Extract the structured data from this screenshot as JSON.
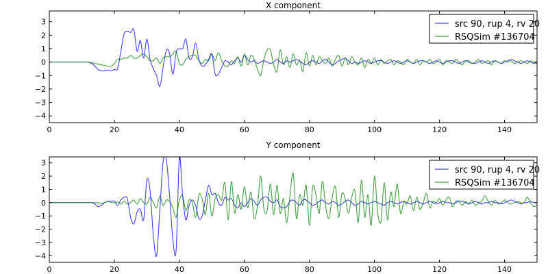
{
  "chart_data": [
    {
      "type": "line",
      "title": "X component",
      "xlim": [
        0,
        150
      ],
      "ylim": [
        -4.5,
        3.8
      ],
      "xticks": [
        0,
        20,
        40,
        60,
        80,
        100,
        120,
        140
      ],
      "yticks": [
        -4,
        -3,
        -2,
        -1,
        0,
        1,
        2,
        3
      ],
      "grid": false,
      "legend_position": "top-right",
      "series": [
        {
          "name": "src 90, rup 4, rv 20",
          "color": "#0000ff",
          "values": [
            0,
            0,
            0,
            0,
            0,
            0,
            0,
            0,
            0,
            0,
            0,
            0,
            0,
            -0.1,
            -0.3,
            -0.55,
            -0.65,
            -0.65,
            -0.6,
            -0.65,
            -0.55,
            -0.5,
            0.8,
            2.1,
            2.3,
            2.2,
            2.4,
            0.8,
            1.6,
            0.3,
            1.7,
            0.2,
            -0.5,
            -1.0,
            -1.8,
            -0.4,
            0.9,
            0.6,
            -0.9,
            0.7,
            1.0,
            1.0,
            1.7,
            0.3,
            0.4,
            1.4,
            0.2,
            -0.3,
            -0.2,
            0.2,
            0.6,
            -0.9,
            -0.9,
            -0.4,
            0.1,
            0.0,
            -0.2,
            0.1,
            0.3,
            0.0,
            0.5,
            0.2,
            0.0,
            0.1,
            -0.1,
            0.0,
            0.1,
            0.0,
            -0.1,
            0.0,
            0.2,
            0.0,
            -0.1,
            0.1,
            0.0,
            0.1,
            0.2,
            0.1,
            -0.1,
            -0.2,
            0.0,
            0.1,
            0.0,
            -0.1,
            0.1,
            0.2,
            0.0,
            -0.2,
            -0.1,
            0.1,
            0.2,
            0.3,
            0.1,
            -0.1,
            0.0,
            -0.1,
            0.0,
            0.1,
            0.0,
            -0.1,
            0.0,
            0.1,
            0.1,
            0.0,
            -0.1,
            0.0,
            0.1,
            0.0,
            -0.1,
            0.0,
            0.1,
            0.0,
            -0.1,
            0.0,
            0.1,
            0.1,
            0.0,
            -0.1,
            0.0,
            0.1,
            0.0,
            -0.1,
            0.0,
            0.1,
            0.1,
            0.0,
            -0.1,
            0.0,
            0.1,
            0.0,
            -0.1,
            -0.1,
            0.0,
            0.1,
            0.0,
            -0.1,
            0.0,
            0.1,
            0.0,
            -0.1,
            0.0,
            0.1,
            0.2,
            0.1,
            0.0,
            -0.1,
            0.0,
            0.1,
            0.0,
            -0.1,
            0.0
          ]
        },
        {
          "name": "RSQSim #136704",
          "color": "#008000",
          "values": [
            0,
            0,
            0,
            0,
            0,
            0,
            0,
            0,
            0,
            0,
            0,
            0,
            0,
            -0.05,
            -0.1,
            -0.15,
            -0.2,
            -0.25,
            -0.3,
            -0.3,
            -0.1,
            0.2,
            0.2,
            0.3,
            0.3,
            0.5,
            0.3,
            0.3,
            0.5,
            0.6,
            0.4,
            0.1,
            0.1,
            0.3,
            -0.1,
            0.3,
            0.4,
            0.4,
            0.6,
            0.8,
            -0.1,
            -0.2,
            0.2,
            0.4,
            0.5,
            0.5,
            0.1,
            -0.1,
            0.2,
            0.1,
            0.6,
            0.1,
            0.7,
            0.1,
            -0.3,
            -0.3,
            0.1,
            -0.1,
            0.4,
            -0.3,
            0.6,
            -0.2,
            0.5,
            0.2,
            -0.5,
            -1.0,
            0.2,
            0.9,
            0.9,
            -0.2,
            -0.7,
            0.9,
            -0.2,
            0.4,
            -0.4,
            0.6,
            -0.2,
            0.1,
            -0.7,
            0.7,
            -0.3,
            0.5,
            -0.2,
            0.4,
            0.1,
            -0.1,
            0.3,
            -0.3,
            0.2,
            0.5,
            -0.3,
            0.3,
            -0.2,
            0.4,
            0.0,
            -0.2,
            0.3,
            -0.4,
            0.2,
            -0.1,
            0.3,
            -0.2,
            0.2,
            -0.1,
            0.1,
            0.2,
            -0.2,
            0.1,
            0.0,
            -0.2,
            0.2,
            0.0,
            -0.1,
            0.2,
            -0.2,
            0.1,
            0.0,
            0.2,
            -0.1,
            0.0,
            0.2,
            -0.2,
            0.1,
            0.0,
            -0.1,
            0.2,
            0.0,
            -0.2,
            0.1,
            0.1,
            -0.1,
            0.0,
            0.2,
            -0.1,
            0.0,
            0.1,
            -0.2,
            0.1,
            0.0,
            -0.1,
            0.1,
            0.0,
            0.1,
            -0.1,
            0.0,
            0.1,
            0.0,
            -0.1,
            0.1,
            0.0,
            -0.1
          ]
        }
      ]
    },
    {
      "type": "line",
      "title": "Y component",
      "xlim": [
        0,
        150
      ],
      "ylim": [
        -4.5,
        3.45
      ],
      "xticks": [
        0,
        20,
        40,
        60,
        80,
        100,
        120,
        140
      ],
      "yticks": [
        -4,
        -3,
        -2,
        -1,
        0,
        1,
        2,
        3
      ],
      "grid": false,
      "legend_position": "top-right",
      "series": [
        {
          "name": "src 90, rup 4, rv 20",
          "color": "#0000ff",
          "values": [
            0,
            0,
            0,
            0,
            0,
            0,
            0,
            0,
            0,
            0,
            0,
            0,
            0,
            0,
            -0.1,
            -0.3,
            -0.2,
            0.0,
            0.1,
            0.1,
            0.1,
            -0.2,
            0.2,
            0.4,
            0.3,
            -1.1,
            -1.6,
            -0.7,
            -0.5,
            -1.3,
            1.7,
            0.9,
            -2.5,
            -4.0,
            -0.5,
            3.1,
            3.2,
            0.5,
            -2.8,
            -3.6,
            3.4,
            0.5,
            -1.3,
            -0.2,
            0.2,
            -0.2,
            -1.2,
            -1.0,
            0.2,
            1.3,
            0.6,
            0.7,
            0.0,
            -0.2,
            0.4,
            0.2,
            0.3,
            -0.2,
            -0.4,
            0.0,
            -0.3,
            0.0,
            0.3,
            0.1,
            -0.2,
            0.2,
            0.4,
            0.4,
            0.1,
            0.0,
            0.2,
            -0.3,
            -0.4,
            -0.3,
            0.1,
            0.2,
            0.0,
            -0.2,
            0.2,
            0.2,
            0.0,
            -0.2,
            -0.1,
            0.1,
            0.2,
            0.0,
            -0.1,
            0.1,
            0.0,
            -0.2,
            -0.1,
            0.1,
            0.2,
            0.0,
            -0.2,
            -0.1,
            0.1,
            0.0,
            -0.1,
            0.0,
            0.1,
            0.0,
            -0.1,
            -0.2,
            0.0,
            0.1,
            0.0,
            -0.1,
            0.0,
            0.1,
            0.0,
            -0.1,
            0.0,
            0.1,
            0.0,
            -0.1,
            0.0,
            0.1,
            0.0,
            -0.1,
            0.0,
            0.1,
            0.0,
            0.0,
            -0.1,
            0.0,
            0.1,
            0.1,
            0.0,
            -0.1,
            0.0,
            0.1,
            0.0,
            -0.1,
            0.0,
            0.0,
            0.1,
            0.0,
            0.0,
            -0.1,
            0.0,
            0.1,
            0.2,
            0.1,
            0.0,
            -0.1,
            0.0,
            0.0,
            0.1,
            0.0,
            0.0
          ]
        },
        {
          "name": "RSQSim #136704",
          "color": "#008000",
          "values": [
            0,
            0,
            0,
            0,
            0,
            0,
            0,
            0,
            0,
            0,
            0,
            0,
            0,
            0,
            0,
            0,
            -0.05,
            0.0,
            0.1,
            0.0,
            0.0,
            0.05,
            -0.1,
            0.1,
            -0.1,
            0.0,
            0.2,
            -0.1,
            0.3,
            0.0,
            -0.1,
            0.4,
            0.0,
            -0.4,
            0.5,
            -0.2,
            0.2,
            0.1,
            -0.4,
            -1.1,
            0.2,
            0.5,
            -0.6,
            0.2,
            0.0,
            -1.1,
            0.6,
            0.3,
            -0.9,
            0.7,
            -1.0,
            0.3,
            0.6,
            0.2,
            1.5,
            -1.3,
            1.6,
            -0.8,
            0.6,
            -0.5,
            1.2,
            -0.4,
            0.8,
            -1.2,
            -0.3,
            2.0,
            -0.5,
            -0.6,
            1.4,
            -0.9,
            1.3,
            -0.8,
            0.3,
            -1.5,
            0.5,
            2.2,
            -1.2,
            0.6,
            -0.2,
            1.3,
            -1.7,
            1.2,
            0.6,
            -0.8,
            1.6,
            -0.3,
            -1.2,
            0.4,
            1.2,
            -1.1,
            0.7,
            0.3,
            -0.8,
            0.4,
            0.9,
            -1.5,
            1.7,
            -1.1,
            0.6,
            -1.7,
            2.0,
            -0.8,
            -1.4,
            1.5,
            -1.3,
            0.8,
            -0.3,
            1.4,
            -0.8,
            0.0,
            -0.1,
            0.5,
            -0.6,
            0.4,
            -0.5,
            0.0,
            0.7,
            -0.4,
            0.1,
            0.0,
            0.3,
            -0.2,
            0.2,
            0.4,
            -0.3,
            0.1,
            0.1,
            -0.2,
            0.1,
            -0.1,
            0.2,
            -0.2,
            0.0,
            0.1,
            0.5,
            0.1,
            -0.2,
            0.2,
            -0.1,
            0.0,
            0.2,
            0.0,
            -0.1,
            0.0,
            0.1,
            0.0,
            0.0,
            0.4,
            0.0,
            -0.3,
            -0.2
          ]
        }
      ]
    }
  ]
}
